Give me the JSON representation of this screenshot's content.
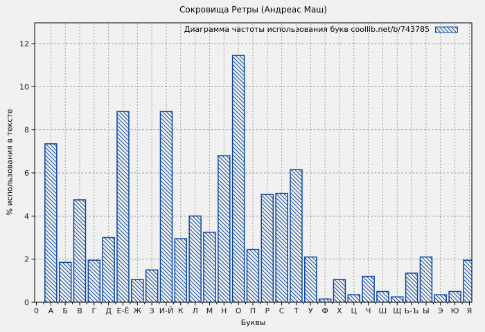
{
  "chart_data": {
    "type": "bar",
    "title": "Сокровища Ретры (Андреас Маш)",
    "legend": "Диаграмма частоты использования букв coollib.net/b/743785",
    "legend_position": "top-right-inside",
    "xlabel": "Буквы",
    "ylabel": "% использования в тексте",
    "x_origin_label": "0",
    "categories": [
      "А",
      "Б",
      "В",
      "Г",
      "Д",
      "Е-Ё",
      "Ж",
      "З",
      "И-Й",
      "К",
      "Л",
      "М",
      "Н",
      "О",
      "П",
      "Р",
      "С",
      "Т",
      "У",
      "Ф",
      "Х",
      "Ц",
      "Ч",
      "Ш",
      "Щ",
      "Ь-Ъ",
      "Ы",
      "Э",
      "Ю",
      "Я"
    ],
    "values": [
      7.35,
      1.85,
      4.75,
      1.95,
      3.0,
      8.85,
      1.05,
      1.5,
      8.85,
      2.95,
      4.0,
      3.25,
      6.8,
      11.45,
      2.45,
      5.0,
      5.05,
      6.15,
      2.1,
      0.15,
      1.05,
      0.35,
      1.2,
      0.5,
      0.25,
      1.35,
      2.1,
      0.35,
      0.5,
      1.95
    ],
    "yticks": [
      0,
      2,
      4,
      6,
      8,
      10,
      12
    ],
    "ylim": [
      0,
      13
    ],
    "xlim": [
      0,
      30.2
    ],
    "grid": true,
    "bar_style": "hatched-backslash",
    "colors": {
      "bar": "#0c47a1",
      "bar_fill": "#f1f1f1",
      "grid": "#9a9a9a",
      "axis": "#000000",
      "background": "#f1f1f1",
      "text": "#1a1a1a"
    }
  }
}
